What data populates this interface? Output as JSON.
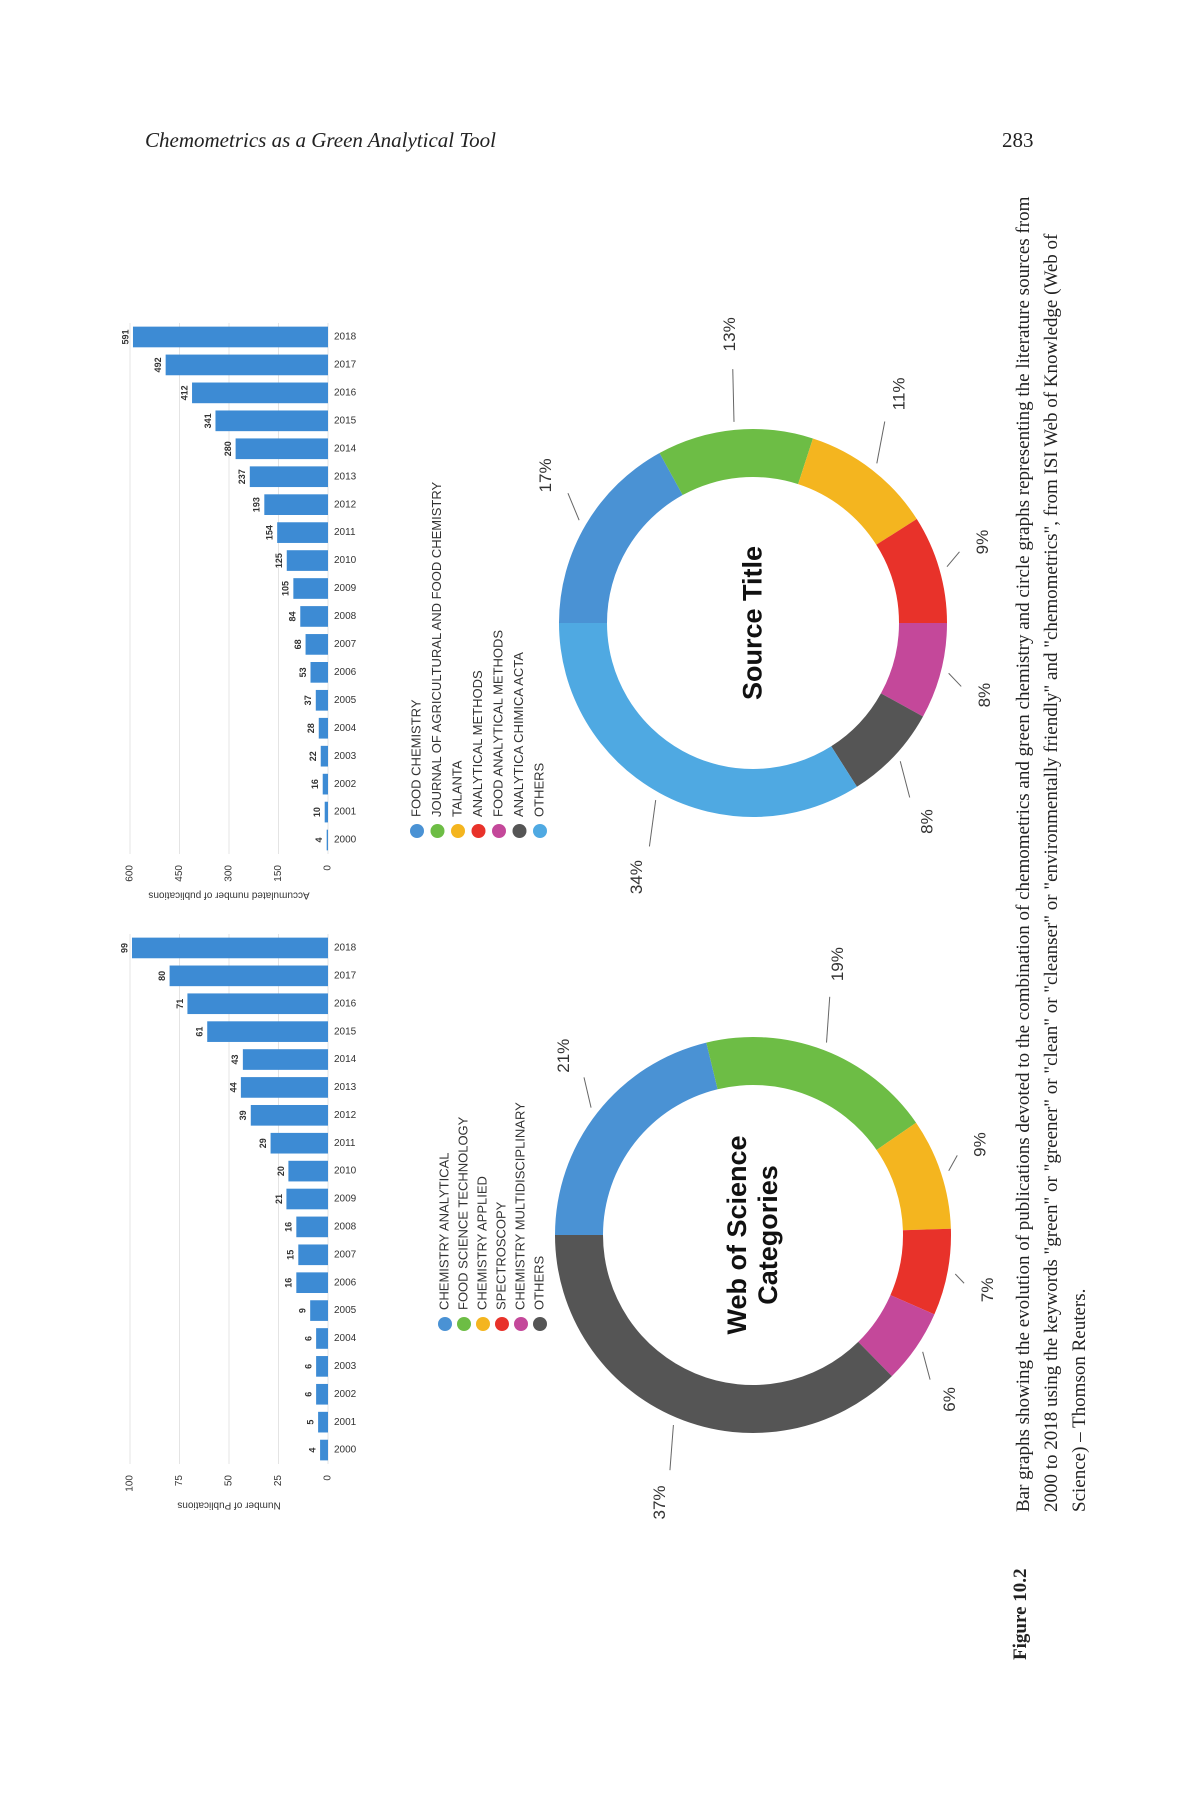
{
  "header": {
    "title": "Chemometrics as a Green Analytical Tool",
    "page_number": "283"
  },
  "chart_data": [
    {
      "type": "bar",
      "y_label": "Number of Publications",
      "categories": [
        "2000",
        "2001",
        "2002",
        "2003",
        "2004",
        "2005",
        "2006",
        "2007",
        "2008",
        "2009",
        "2010",
        "2011",
        "2012",
        "2013",
        "2014",
        "2015",
        "2016",
        "2017",
        "2018"
      ],
      "values": [
        4,
        5,
        6,
        6,
        6,
        9,
        16,
        15,
        16,
        21,
        20,
        29,
        39,
        44,
        43,
        61,
        71,
        80,
        99
      ],
      "color": "#3d8bd4",
      "ylim": [
        0,
        100
      ],
      "yticks": [
        0,
        25,
        50,
        75,
        100
      ],
      "grid": true
    },
    {
      "type": "bar",
      "y_label": "Accumulated number of publications",
      "categories": [
        "2000",
        "2001",
        "2002",
        "2003",
        "2004",
        "2005",
        "2006",
        "2007",
        "2008",
        "2009",
        "2010",
        "2011",
        "2012",
        "2013",
        "2014",
        "2015",
        "2016",
        "2017",
        "2018"
      ],
      "values": [
        4,
        10,
        16,
        22,
        28,
        37,
        53,
        68,
        84,
        105,
        125,
        154,
        193,
        237,
        280,
        341,
        412,
        492,
        591
      ],
      "color": "#3d8bd4",
      "ylim": [
        0,
        600
      ],
      "yticks": [
        0,
        150,
        300,
        450,
        600
      ],
      "grid": true
    },
    {
      "type": "donut",
      "title": "Web of Science Categories",
      "categories": [
        "CHEMISTRY ANALYTICAL",
        "FOOD SCIENCE TECHNOLOGY",
        "CHEMISTRY APPLIED",
        "SPECTROSCOPY",
        "CHEMISTRY MULTIDISCIPLINARY",
        "OTHERS"
      ],
      "values": [
        21,
        19,
        9,
        7,
        6,
        37
      ],
      "value_labels": [
        "21%",
        "19%",
        "9%",
        "7%",
        "6%",
        "37%"
      ],
      "colors": [
        "#4a92d4",
        "#6dbd45",
        "#f4b51f",
        "#e8322a",
        "#c4489a",
        "#555555"
      ]
    },
    {
      "type": "donut",
      "title": "Source Title",
      "categories": [
        "FOOD CHEMISTRY",
        "JOURNAL OF AGRICULTURAL AND FOOD CHEMISTRY",
        "TALANTA",
        "ANALYTICAL METHODS",
        "FOOD ANALYTICAL METHODS",
        "ANALYTICA CHIMICA ACTA",
        "OTHERS"
      ],
      "values": [
        17,
        13,
        11,
        9,
        8,
        8,
        34
      ],
      "value_labels": [
        "17%",
        "13%",
        "11%",
        "9%",
        "8%",
        "8%",
        "34%"
      ],
      "colors": [
        "#4a92d4",
        "#6dbd45",
        "#f4b51f",
        "#e8322a",
        "#c4489a",
        "#555555",
        "#4fa9e2"
      ]
    }
  ],
  "caption": {
    "label": "Figure 10.2",
    "text": "Bar graphs showing the evolution of publications devoted to the combination of chemometrics and green chemistry and circle graphs representing the literature sources from 2000 to 2018 using the keywords \"green\" or \"greener\" or \"clean\" or \"cleanser\" or \"environmentally friendly\" and \"chemometrics\", from ISI Web of Knowledge (Web of Science) – Thomson Reuters."
  }
}
